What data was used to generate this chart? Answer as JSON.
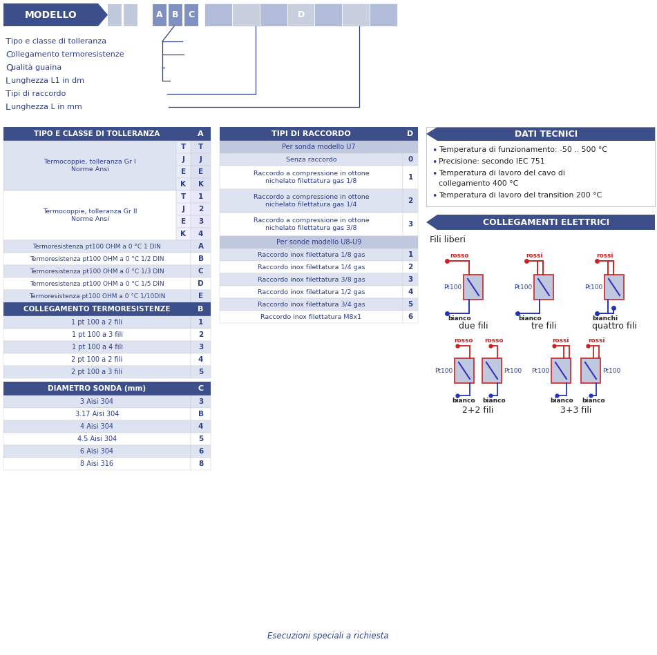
{
  "bg_color": "#ffffff",
  "dark_blue": "#3d4f8a",
  "med_blue": "#8090c0",
  "light_blue": "#b0bcd8",
  "row_alt": "#dde3f0",
  "text_blue": "#2e3f8a",
  "red_c": "#cc2222",
  "blue_c": "#2233bb",
  "modello_text": "MODELLO",
  "left_labels": [
    [
      "T",
      "ipo e classe di tolleranza"
    ],
    [
      "C",
      "ollegamento termoresistenze"
    ],
    [
      "Q",
      "ualità guaina"
    ],
    [
      "L",
      "unghezza L1 in dm"
    ],
    [
      "T",
      "ipi di raccordo"
    ],
    [
      "L",
      "unghezza L in mm"
    ]
  ],
  "tipo_groups": [
    {
      "desc": "Termocoppie, tolleranza Gr I\nNorme Ansi",
      "items": [
        [
          "T",
          "T"
        ],
        [
          "J",
          "J"
        ],
        [
          "E",
          "E"
        ],
        [
          "K",
          "K"
        ]
      ]
    },
    {
      "desc": "Termocoppie, tolleranza Gr II\nNorme Ansi",
      "items": [
        [
          "T",
          "1"
        ],
        [
          "J",
          "2"
        ],
        [
          "E",
          "3"
        ],
        [
          "K",
          "4"
        ]
      ]
    }
  ],
  "resistenza_rows": [
    [
      "Termoresistenza pt100 OHM a 0 °C 1 DIN",
      "A"
    ],
    [
      "Termoresistenza pt100 OHM a 0 °C 1/2 DIN",
      "B"
    ],
    [
      "Termoresistenza pt100 OHM a 0 °C 1/3 DIN",
      "C"
    ],
    [
      "Termoresistenza pt100 OHM a 0 °C 1/5 DIN",
      "D"
    ],
    [
      "Termoresistenza pt100 OHM a 0 °C 1/10DIN",
      "E"
    ]
  ],
  "collegamento_rows": [
    [
      "1 pt 100 a 2 fili",
      "1"
    ],
    [
      "1 pt 100 a 3 fili",
      "2"
    ],
    [
      "1 pt 100 a 4 fili",
      "3"
    ],
    [
      "2 pt 100 a 2 fili",
      "4"
    ],
    [
      "2 pt 100 a 3 fili",
      "5"
    ]
  ],
  "diametro_rows": [
    [
      "3 Aisi 304",
      "3"
    ],
    [
      "3.17 Aisi 304",
      "B"
    ],
    [
      "4 Aisi 304",
      "4"
    ],
    [
      "4.5 Aisi 304",
      "5"
    ],
    [
      "6 Aisi 304",
      "6"
    ],
    [
      "8 Aisi 316",
      "8"
    ]
  ],
  "raccordo_rows": [
    {
      "text": "Per sonda modello U7",
      "code": "",
      "subheader": true
    },
    {
      "text": "Senza raccordo",
      "code": "0",
      "subheader": false
    },
    {
      "text": "Raccordo a compressione in ottone\nnichelato filettatura gas 1/8",
      "code": "1",
      "subheader": false
    },
    {
      "text": "Raccordo a compressione in ottone\nnichelato filettatura gas 1/4",
      "code": "2",
      "subheader": false
    },
    {
      "text": "Raccordo a compressione in ottone\nnichelato filettatura gas 3/8",
      "code": "3",
      "subheader": false
    },
    {
      "text": "Per sonde modello U8-U9",
      "code": "",
      "subheader": true
    },
    {
      "text": "Raccordo inox filettatura 1/8 gas",
      "code": "1",
      "subheader": false
    },
    {
      "text": "Raccordo inox filettatura 1/4 gas",
      "code": "2",
      "subheader": false
    },
    {
      "text": "Raccordo inox filettatura 3/8 gas",
      "code": "3",
      "subheader": false
    },
    {
      "text": "Raccordo inox filettatura 1/2 gas",
      "code": "4",
      "subheader": false
    },
    {
      "text": "Raccordo inox filettatura 3/4 gas",
      "code": "5",
      "subheader": false
    },
    {
      "text": "Raccordo inox filettatura M8x1",
      "code": "6",
      "subheader": false
    }
  ],
  "dati_bullets": [
    "Temperatura di funzionamento: -50 .. 500 °C",
    "Precisione: secondo IEC 751",
    "Temperatura di lavoro del cavo di\ncollegamento 400 °C",
    "Temperatura di lavoro del transition 200 °C"
  ],
  "bottom_text": "Esecuzioni speciali a richiesta"
}
